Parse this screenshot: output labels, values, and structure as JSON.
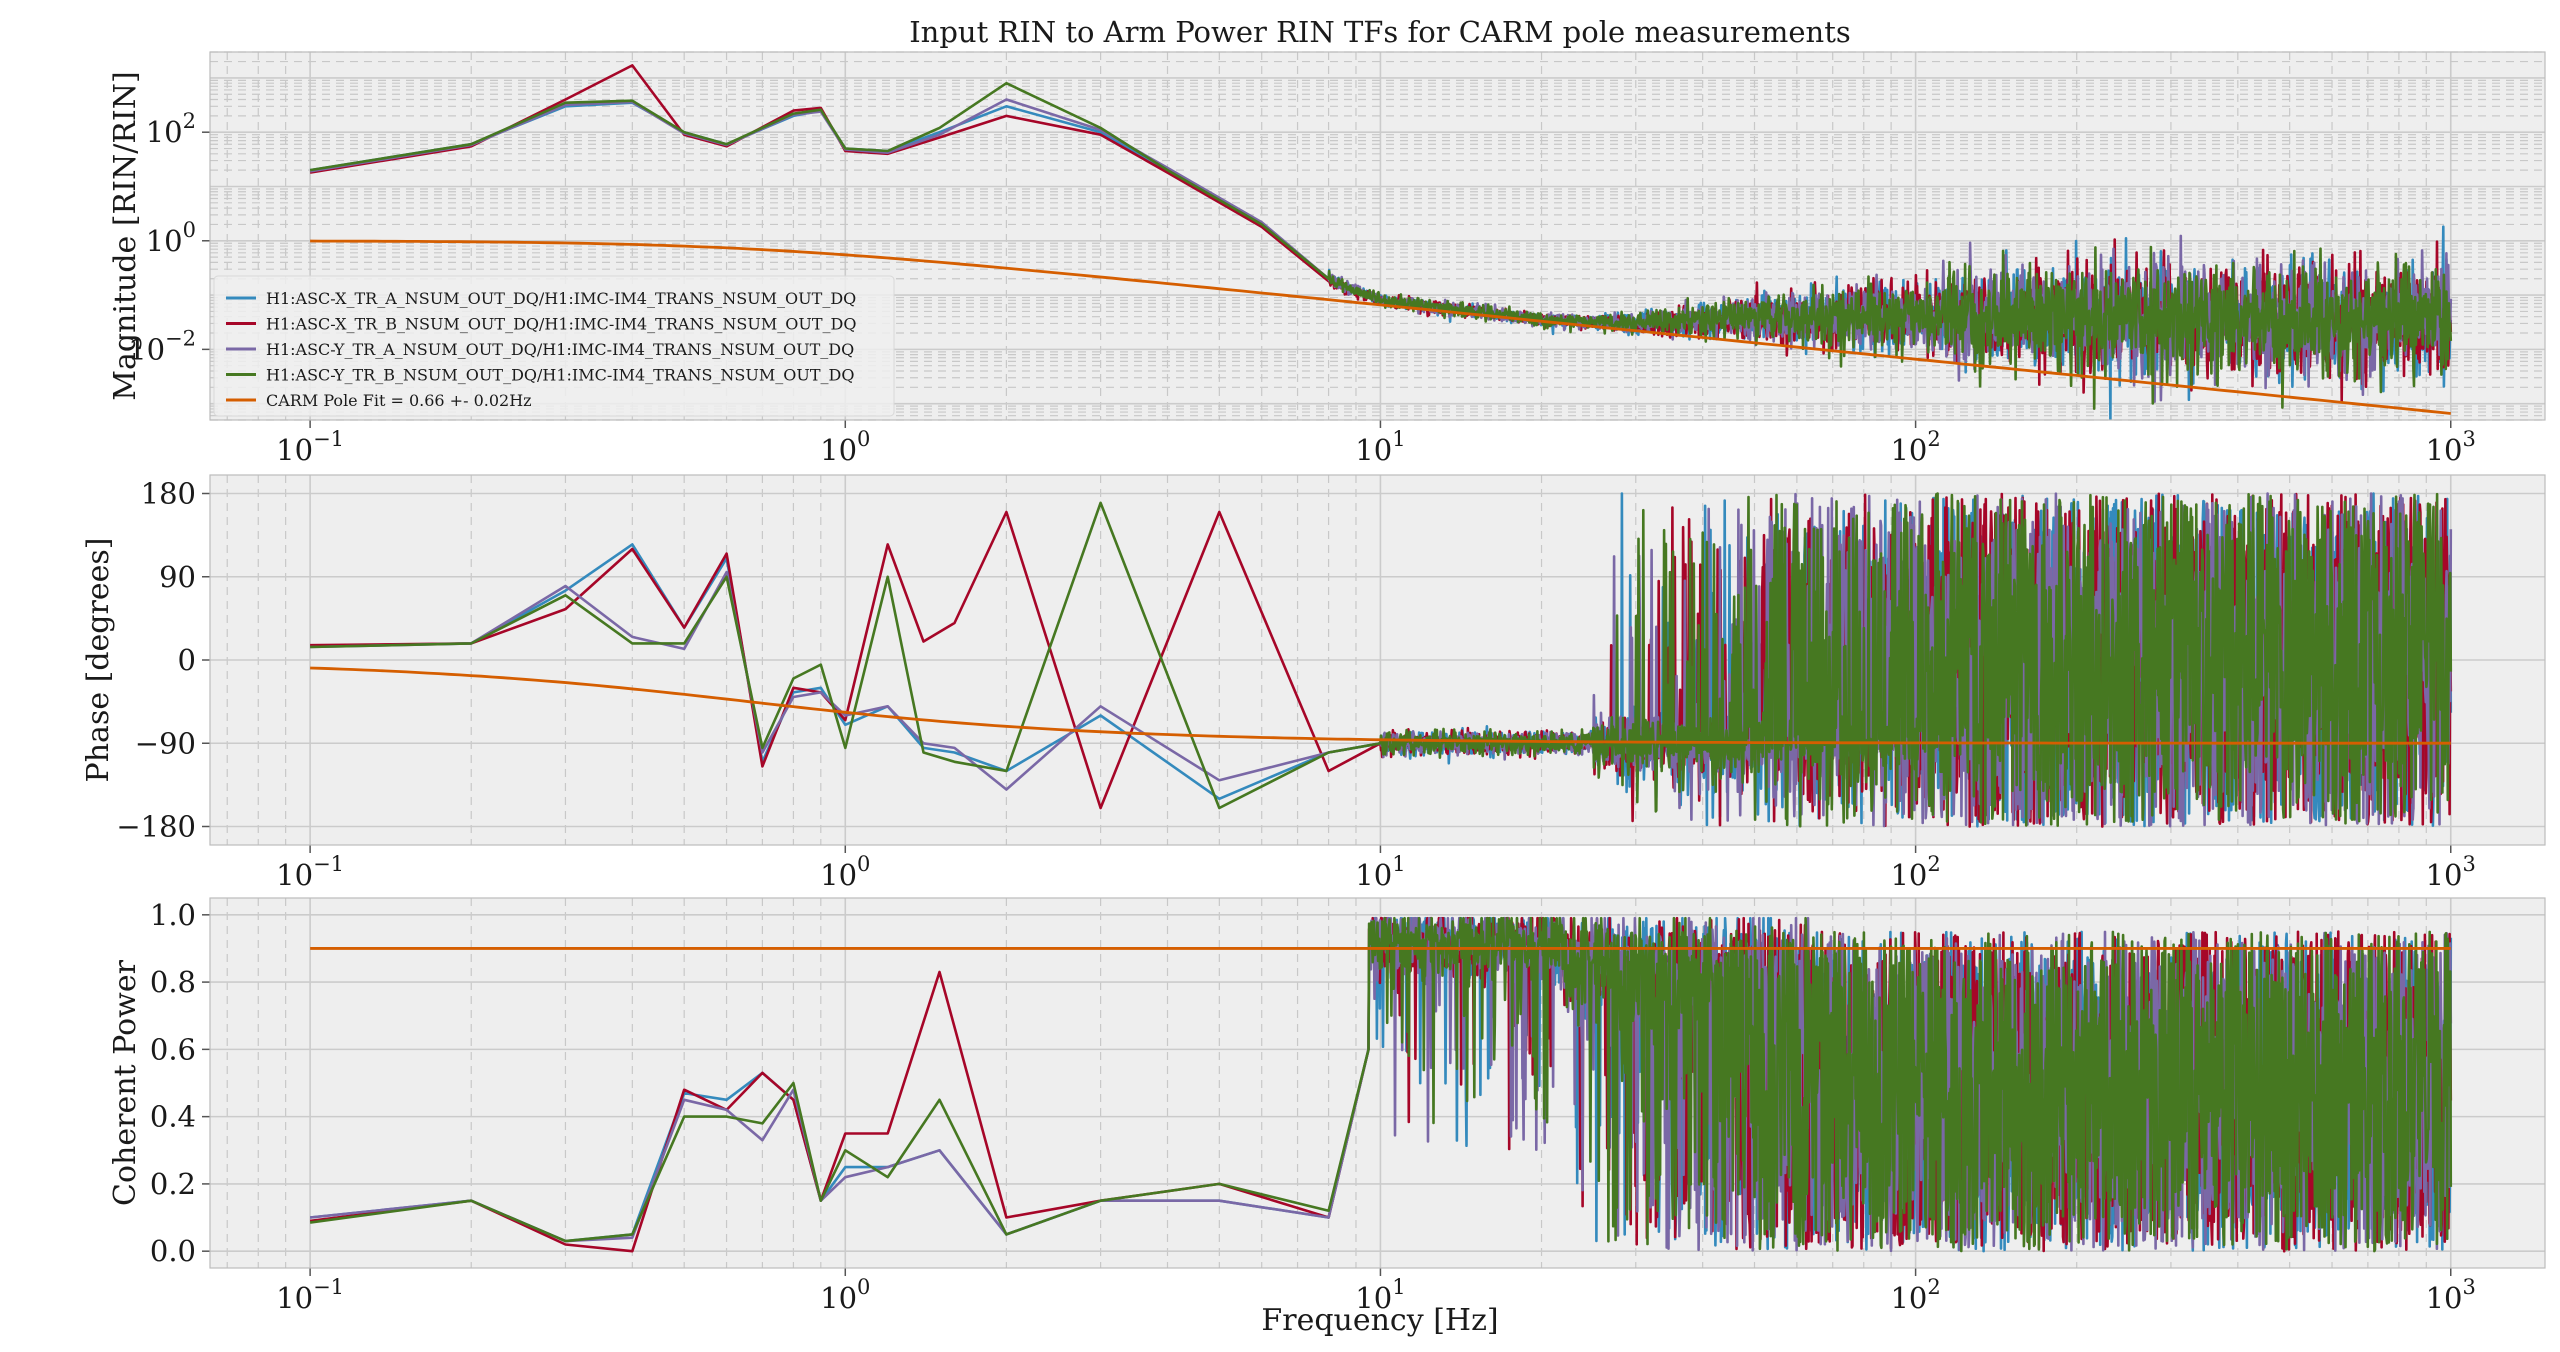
{
  "figure": {
    "title": "Input RIN to Arm Power RIN TFs for CARM pole measurements",
    "xlabel": "Frequency [Hz]"
  },
  "colors": {
    "H1:ASC-X_TR_A_NSUM_OUT_DQ/H1:IMC-IM4_TRANS_NSUM_OUT_DQ": "#348ABD",
    "H1:ASC-X_TR_B_NSUM_OUT_DQ/H1:IMC-IM4_TRANS_NSUM_OUT_DQ": "#A60628",
    "H1:ASC-Y_TR_A_NSUM_OUT_DQ/H1:IMC-IM4_TRANS_NSUM_OUT_DQ": "#7A68A6",
    "H1:ASC-Y_TR_B_NSUM_OUT_DQ/H1:IMC-IM4_TRANS_NSUM_OUT_DQ": "#467821",
    "CARM Pole Fit = 0.66 +- 0.02Hz": "#D55E00",
    "axes_background": "#EEEEEE",
    "grid": "#cfcfcf"
  },
  "legend": {
    "placement": "lower-left",
    "entries": [
      "H1:ASC-X_TR_A_NSUM_OUT_DQ/H1:IMC-IM4_TRANS_NSUM_OUT_DQ",
      "H1:ASC-X_TR_B_NSUM_OUT_DQ/H1:IMC-IM4_TRANS_NSUM_OUT_DQ",
      "H1:ASC-Y_TR_A_NSUM_OUT_DQ/H1:IMC-IM4_TRANS_NSUM_OUT_DQ",
      "H1:ASC-Y_TR_B_NSUM_OUT_DQ/H1:IMC-IM4_TRANS_NSUM_OUT_DQ",
      "CARM Pole Fit = 0.66 +- 0.02Hz"
    ]
  },
  "chart_data": [
    {
      "type": "line",
      "ylabel": "Magnitude [RIN/RIN]",
      "xscale": "log",
      "yscale": "log",
      "xlim": [
        0.065,
        1500
      ],
      "ylim": [
        0.0005,
        3000
      ],
      "grid": true,
      "xticks": [
        "10^-1",
        "10^0",
        "10^1",
        "10^2",
        "10^3"
      ],
      "yticks": [
        "10^-2",
        "10^0",
        "10^2"
      ],
      "fit": {
        "name": "CARM Pole Fit = 0.66 +- 0.02Hz",
        "type": "single-pole",
        "pole_hz": 0.66,
        "dc_gain": 1.0
      },
      "series": [
        {
          "name": "H1:ASC-X_TR_A_NSUM_OUT_DQ/H1:IMC-IM4_TRANS_NSUM_OUT_DQ",
          "x": [
            0.1,
            0.2,
            0.3,
            0.4,
            0.5,
            0.6,
            0.8,
            0.9,
            1.0,
            1.2,
            1.5,
            2.0,
            3.0,
            4.0,
            6.0,
            8.0,
            10,
            15,
            20,
            30,
            50,
            100,
            200,
            500,
            1000
          ],
          "y": [
            20,
            60,
            300,
            350,
            100,
            60,
            200,
            250,
            50,
            45,
            100,
            300,
            100,
            20,
            2,
            0.2,
            0.08,
            0.05,
            0.035,
            0.03,
            0.04,
            0.04,
            0.04,
            0.035,
            0.035
          ]
        },
        {
          "name": "H1:ASC-X_TR_B_NSUM_OUT_DQ/H1:IMC-IM4_TRANS_NSUM_OUT_DQ",
          "x": [
            0.1,
            0.2,
            0.3,
            0.4,
            0.5,
            0.6,
            0.8,
            0.9,
            1.0,
            1.2,
            1.5,
            2.0,
            3.0,
            4.0,
            6.0,
            8.0,
            10,
            15,
            20,
            30,
            50,
            100,
            200,
            500,
            1000
          ],
          "y": [
            18,
            55,
            400,
            1700,
            90,
            55,
            250,
            280,
            45,
            40,
            80,
            200,
            90,
            18,
            1.8,
            0.18,
            0.08,
            0.05,
            0.035,
            0.03,
            0.04,
            0.04,
            0.04,
            0.035,
            0.035
          ]
        },
        {
          "name": "H1:ASC-Y_TR_A_NSUM_OUT_DQ/H1:IMC-IM4_TRANS_NSUM_OUT_DQ",
          "x": [
            0.1,
            0.2,
            0.3,
            0.4,
            0.5,
            0.6,
            0.8,
            0.9,
            1.0,
            1.2,
            1.5,
            2.0,
            3.0,
            4.0,
            6.0,
            8.0,
            10,
            15,
            20,
            30,
            50,
            100,
            200,
            500,
            1000
          ],
          "y": [
            19,
            58,
            320,
            360,
            95,
            58,
            210,
            240,
            48,
            42,
            90,
            400,
            110,
            22,
            2.2,
            0.2,
            0.08,
            0.05,
            0.035,
            0.03,
            0.04,
            0.04,
            0.04,
            0.035,
            0.035
          ]
        },
        {
          "name": "H1:ASC-Y_TR_B_NSUM_OUT_DQ/H1:IMC-IM4_TRANS_NSUM_OUT_DQ",
          "x": [
            0.1,
            0.2,
            0.3,
            0.4,
            0.5,
            0.6,
            0.8,
            0.9,
            1.0,
            1.2,
            1.5,
            2.0,
            3.0,
            4.0,
            6.0,
            8.0,
            10,
            15,
            20,
            30,
            50,
            100,
            200,
            500,
            1000
          ],
          "y": [
            20,
            60,
            350,
            380,
            100,
            60,
            220,
            260,
            50,
            45,
            120,
            800,
            120,
            20,
            2,
            0.2,
            0.08,
            0.05,
            0.035,
            0.03,
            0.04,
            0.04,
            0.04,
            0.035,
            0.035
          ]
        }
      ]
    },
    {
      "type": "line",
      "ylabel": "Phase [degrees]",
      "xscale": "log",
      "xlim": [
        0.065,
        1500
      ],
      "ylim": [
        -200,
        200
      ],
      "grid": true,
      "xticks": [
        "10^-1",
        "10^0",
        "10^1",
        "10^2",
        "10^3"
      ],
      "yticks": [
        "180",
        "90",
        "0",
        "−90",
        "−180"
      ],
      "fit": {
        "name": "CARM Pole Fit = 0.66 +- 0.02Hz",
        "type": "single-pole-phase",
        "pole_hz": 0.66
      },
      "series": [
        {
          "name": "H1:ASC-X_TR_A_NSUM_OUT_DQ/H1:IMC-IM4_TRANS_NSUM_OUT_DQ",
          "x": [
            0.1,
            0.2,
            0.3,
            0.4,
            0.5,
            0.6,
            0.7,
            0.8,
            0.9,
            1.0,
            1.2,
            1.4,
            1.6,
            2.0,
            3.0,
            5.0,
            8.0,
            10,
            15,
            20
          ],
          "y": [
            15,
            18,
            75,
            125,
            35,
            110,
            -110,
            -35,
            -30,
            -70,
            -50,
            -95,
            -100,
            -120,
            -60,
            -150,
            -100,
            -90,
            -90,
            -95
          ]
        },
        {
          "name": "H1:ASC-X_TR_B_NSUM_OUT_DQ/H1:IMC-IM4_TRANS_NSUM_OUT_DQ",
          "x": [
            0.1,
            0.2,
            0.3,
            0.4,
            0.5,
            0.6,
            0.7,
            0.8,
            0.9,
            1.0,
            1.2,
            1.4,
            1.6,
            2.0,
            3.0,
            5.0,
            8.0,
            10,
            15,
            20
          ],
          "y": [
            16,
            18,
            55,
            120,
            35,
            115,
            -115,
            -30,
            -35,
            -65,
            125,
            20,
            40,
            160,
            -160,
            160,
            -120,
            -90,
            -90,
            -95
          ]
        },
        {
          "name": "H1:ASC-Y_TR_A_NSUM_OUT_DQ/H1:IMC-IM4_TRANS_NSUM_OUT_DQ",
          "x": [
            0.1,
            0.2,
            0.3,
            0.4,
            0.5,
            0.6,
            0.7,
            0.8,
            0.9,
            1.0,
            1.2,
            1.4,
            1.6,
            2.0,
            3.0,
            5.0,
            8.0,
            10,
            15,
            20
          ],
          "y": [
            14,
            18,
            80,
            25,
            12,
            95,
            -100,
            -40,
            -35,
            -60,
            -50,
            -90,
            -95,
            -140,
            -50,
            -130,
            -100,
            -90,
            -90,
            -95
          ]
        },
        {
          "name": "H1:ASC-Y_TR_B_NSUM_OUT_DQ/H1:IMC-IM4_TRANS_NSUM_OUT_DQ",
          "x": [
            0.1,
            0.2,
            0.3,
            0.4,
            0.5,
            0.6,
            0.7,
            0.8,
            0.9,
            1.0,
            1.2,
            1.4,
            1.6,
            2.0,
            3.0,
            5.0,
            8.0,
            10,
            15,
            20
          ],
          "y": [
            14,
            18,
            70,
            18,
            18,
            90,
            -95,
            -20,
            -5,
            -95,
            90,
            -100,
            -110,
            -120,
            170,
            -160,
            -100,
            -90,
            -90,
            -95
          ]
        }
      ]
    },
    {
      "type": "line",
      "ylabel": "Coherent Power",
      "xscale": "log",
      "xlim": [
        0.065,
        1500
      ],
      "ylim": [
        -0.05,
        1.05
      ],
      "grid": true,
      "xticks": [
        "10^-1",
        "10^0",
        "10^1",
        "10^2",
        "10^3"
      ],
      "yticks": [
        "0.0",
        "0.2",
        "0.4",
        "0.6",
        "0.8",
        "1.0"
      ],
      "threshold": {
        "y": 0.9,
        "x_range": [
          0.1,
          1000
        ]
      },
      "series": [
        {
          "name": "H1:ASC-X_TR_A_NSUM_OUT_DQ/H1:IMC-IM4_TRANS_NSUM_OUT_DQ",
          "x": [
            0.1,
            0.2,
            0.3,
            0.4,
            0.5,
            0.6,
            0.7,
            0.8,
            0.9,
            1.0,
            1.2,
            1.5,
            2.0,
            3.0,
            5.0,
            8.0,
            9.5,
            10,
            12,
            15,
            20
          ],
          "y": [
            0.1,
            0.15,
            0.03,
            0.05,
            0.47,
            0.45,
            0.53,
            0.45,
            0.15,
            0.25,
            0.25,
            0.3,
            0.05,
            0.15,
            0.15,
            0.1,
            0.6,
            0.95,
            0.95,
            0.9,
            0.7
          ]
        },
        {
          "name": "H1:ASC-X_TR_B_NSUM_OUT_DQ/H1:IMC-IM4_TRANS_NSUM_OUT_DQ",
          "x": [
            0.1,
            0.2,
            0.3,
            0.4,
            0.5,
            0.6,
            0.7,
            0.8,
            0.9,
            1.0,
            1.2,
            1.5,
            2.0,
            3.0,
            5.0,
            8.0,
            9.5,
            10,
            12,
            15,
            20
          ],
          "y": [
            0.09,
            0.15,
            0.02,
            0.0,
            0.48,
            0.42,
            0.53,
            0.45,
            0.15,
            0.35,
            0.35,
            0.83,
            0.1,
            0.15,
            0.2,
            0.1,
            0.6,
            0.95,
            0.95,
            0.9,
            0.7
          ]
        },
        {
          "name": "H1:ASC-Y_TR_A_NSUM_OUT_DQ/H1:IMC-IM4_TRANS_NSUM_OUT_DQ",
          "x": [
            0.1,
            0.2,
            0.3,
            0.4,
            0.5,
            0.6,
            0.7,
            0.8,
            0.9,
            1.0,
            1.2,
            1.5,
            2.0,
            3.0,
            5.0,
            8.0,
            9.5,
            10,
            12,
            15,
            20
          ],
          "y": [
            0.1,
            0.15,
            0.03,
            0.04,
            0.45,
            0.42,
            0.33,
            0.48,
            0.15,
            0.22,
            0.25,
            0.3,
            0.05,
            0.15,
            0.15,
            0.1,
            0.6,
            0.95,
            0.95,
            0.9,
            0.7
          ]
        },
        {
          "name": "H1:ASC-Y_TR_B_NSUM_OUT_DQ/H1:IMC-IM4_TRANS_NSUM_OUT_DQ",
          "x": [
            0.1,
            0.2,
            0.3,
            0.4,
            0.5,
            0.6,
            0.7,
            0.8,
            0.9,
            1.0,
            1.2,
            1.5,
            2.0,
            3.0,
            5.0,
            8.0,
            9.5,
            10,
            12,
            15,
            20
          ],
          "y": [
            0.085,
            0.15,
            0.03,
            0.05,
            0.4,
            0.4,
            0.38,
            0.5,
            0.15,
            0.3,
            0.22,
            0.45,
            0.05,
            0.15,
            0.2,
            0.12,
            0.6,
            0.95,
            0.95,
            0.9,
            0.7
          ]
        }
      ]
    }
  ]
}
